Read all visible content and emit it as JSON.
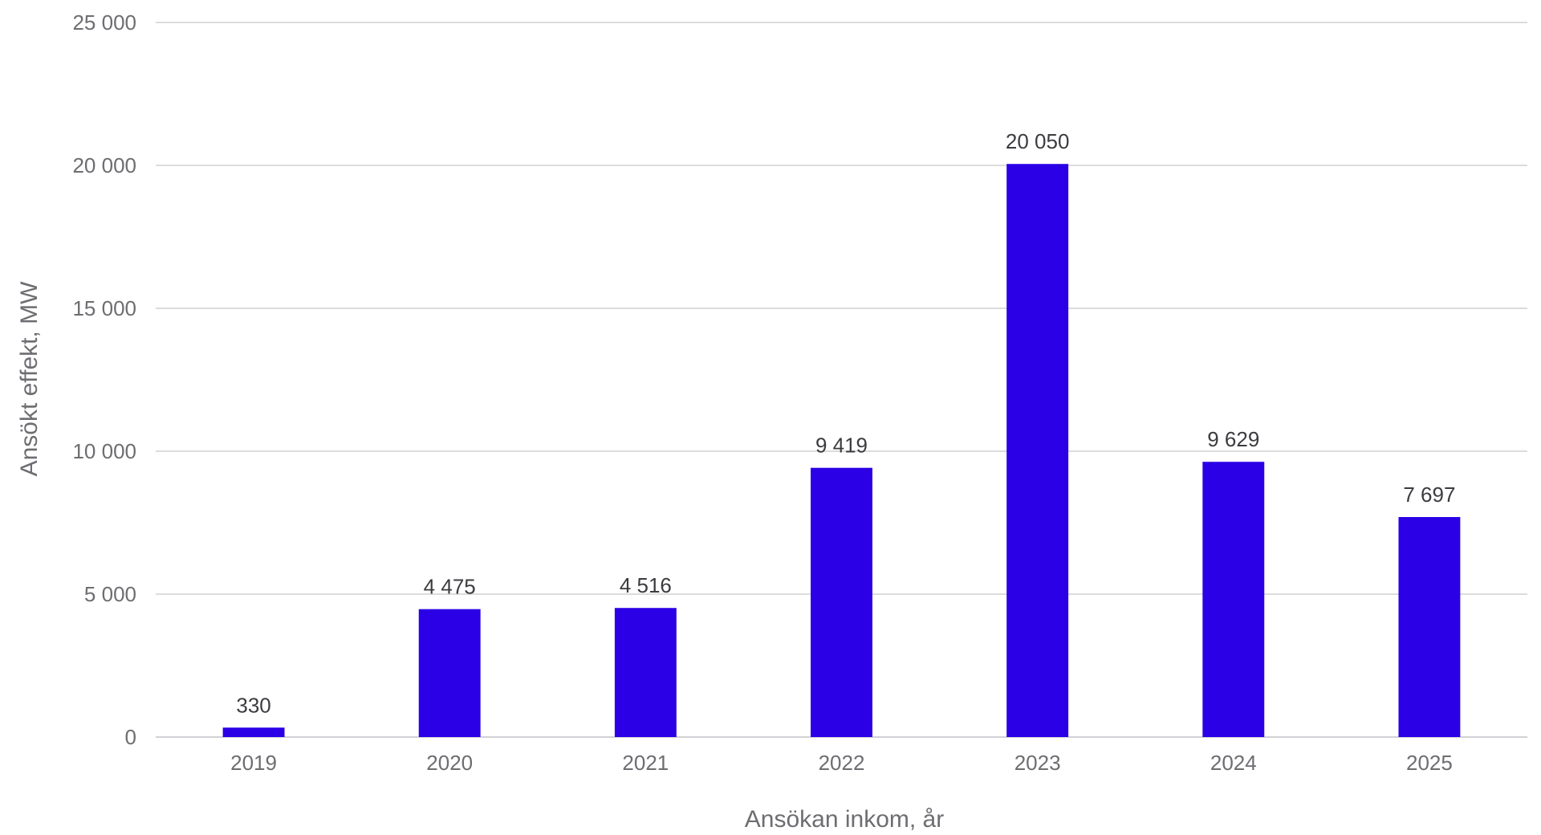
{
  "chart_data": {
    "type": "bar",
    "title": "",
    "xlabel": "Ansökan inkom, år",
    "ylabel": "Ansökt effekt, MW",
    "categories": [
      "2019",
      "2020",
      "2021",
      "2022",
      "2023",
      "2024",
      "2025"
    ],
    "values": [
      330,
      4475,
      4516,
      9419,
      20050,
      9629,
      7697
    ],
    "value_labels": [
      "330",
      "4 475",
      "4 516",
      "9 419",
      "20 050",
      "9 629",
      "7 697"
    ],
    "ylim": [
      0,
      25000
    ],
    "yticks": [
      0,
      5000,
      10000,
      15000,
      20000,
      25000
    ],
    "ytick_labels": [
      "0",
      "5 000",
      "10 000",
      "15 000",
      "20 000",
      "25 000"
    ],
    "grid": true,
    "legend": "none",
    "bar_color": "#2b00e6"
  }
}
